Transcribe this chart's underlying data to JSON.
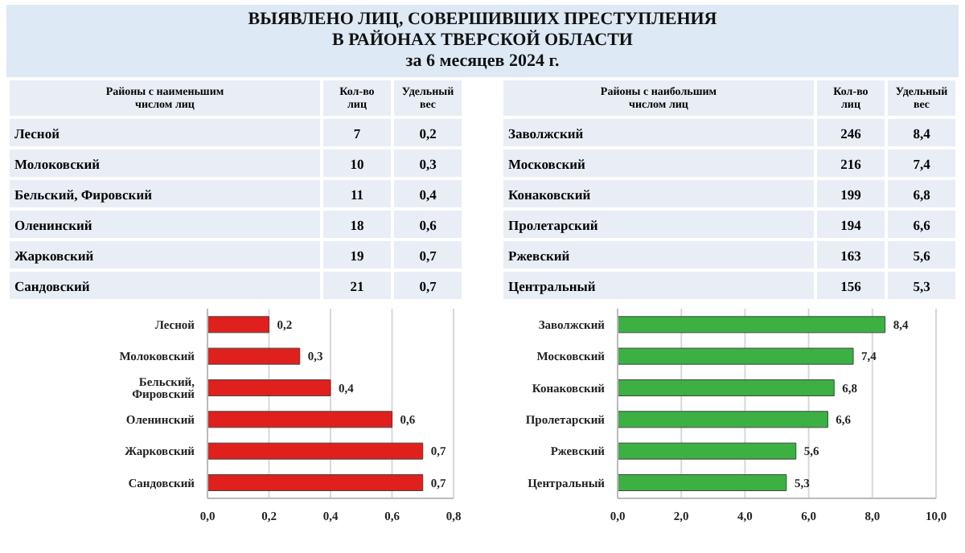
{
  "chart_data": [
    {
      "type": "other",
      "title": "ВЫЯВЛЕНО ЛИЦ, СОВЕРШИВШИХ ПРЕСТУПЛЕНИЯ\nВ РАЙОНАХ ТВЕРСКОЙ ОБЛАСТИ\nза 6 месяцев 2024 г."
    },
    {
      "type": "other",
      "data_labels": true,
      "title": "Районы с наименьшим\nчислом лиц",
      "categories": [
        "Лесной",
        "Молоковский",
        "Бельский, Фировский",
        "Оленинский",
        "Жарковский",
        "Сандовский"
      ],
      "series": [
        {
          "name": "Кол-во\nлиц",
          "values": [
            7,
            10,
            11,
            18,
            19,
            21
          ]
        },
        {
          "name": "Удельный\nвес",
          "values": [
            0.2,
            0.3,
            0.4,
            0.6,
            0.7,
            0.7
          ],
          "value_labels": [
            "0,2",
            "0,3",
            "0,4",
            "0,6",
            "0,7",
            "0,7"
          ]
        }
      ]
    },
    {
      "type": "other",
      "data_labels": true,
      "title": "Районы с наибольшим\nчислом лиц",
      "categories": [
        "Заволжский",
        "Московский",
        "Конаковский",
        "Пролетарский",
        "Ржевский",
        "Центральный"
      ],
      "series": [
        {
          "name": "Кол-во\nлиц",
          "values": [
            246,
            216,
            199,
            194,
            163,
            156
          ]
        },
        {
          "name": "Удельный\nвес",
          "values": [
            8.4,
            7.4,
            6.8,
            6.6,
            5.6,
            5.3
          ],
          "value_labels": [
            "8,4",
            "7,4",
            "6,8",
            "6,6",
            "5,6",
            "5,3"
          ]
        }
      ]
    },
    {
      "type": "bar",
      "orientation": "horizontal",
      "categories": [
        "Лесной",
        "Молоковский",
        "Бельский, Фировский",
        "Оленинский",
        "Жарковский",
        "Сандовский"
      ],
      "values": [
        0.2,
        0.3,
        0.4,
        0.6,
        0.7,
        0.7
      ],
      "value_labels": [
        "0,2",
        "0,3",
        "0,4",
        "0,6",
        "0,7",
        "0,7"
      ],
      "color": "#e0201c",
      "xlim": [
        0,
        0.8
      ],
      "xticks": [
        {
          "value": 0,
          "label": "0,0"
        },
        {
          "value": 0.2,
          "label": "0,2"
        },
        {
          "value": 0.4,
          "label": "0,4"
        },
        {
          "value": 0.6,
          "label": "0,6"
        },
        {
          "value": 0.8,
          "label": "0,8"
        }
      ],
      "grid": "x"
    },
    {
      "type": "bar",
      "orientation": "horizontal",
      "categories": [
        "Заволжский",
        "Московский",
        "Конаковский",
        "Пролетарский",
        "Ржевский",
        "Центральный"
      ],
      "values": [
        8.4,
        7.4,
        6.8,
        6.6,
        5.6,
        5.3
      ],
      "value_labels": [
        "8,4",
        "7,4",
        "6,8",
        "6,6",
        "5,6",
        "5,3"
      ],
      "color": "#3cb043",
      "xlim": [
        0,
        10
      ],
      "xticks": [
        {
          "value": 0,
          "label": "0,0"
        },
        {
          "value": 2,
          "label": "2,0"
        },
        {
          "value": 4,
          "label": "4,0"
        },
        {
          "value": 6,
          "label": "6,0"
        },
        {
          "value": 8,
          "label": "8,0"
        },
        {
          "value": 10,
          "label": "10,0"
        }
      ],
      "grid": "x"
    }
  ]
}
